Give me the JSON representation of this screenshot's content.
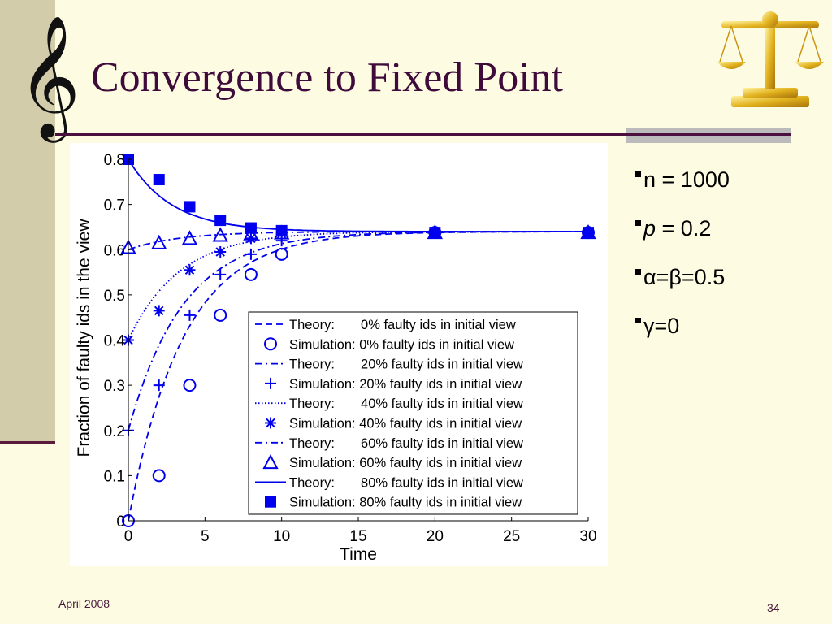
{
  "slide": {
    "title": "Convergence to Fixed Point",
    "clef_glyph": "𝄞",
    "footer_date": "April 2008",
    "page_number": "34",
    "logo_icon": "scales-of-justice-icon",
    "bullets": [
      {
        "label": "n",
        "value": " = 1000",
        "italic": false
      },
      {
        "label": "p",
        "value": " = 0.2",
        "italic": true
      },
      {
        "label": "α=β=0.5",
        "value": "",
        "italic": false
      },
      {
        "label": "γ=0",
        "value": "",
        "italic": false
      }
    ]
  },
  "chart_data": {
    "type": "line",
    "xlabel": "Time",
    "ylabel": "Fraction of faulty ids in the view",
    "xlim": [
      0,
      30
    ],
    "ylim": [
      0,
      0.8
    ],
    "xticks": [
      0,
      5,
      10,
      15,
      20,
      25,
      30
    ],
    "yticks": [
      0,
      0.1,
      0.2,
      0.3,
      0.4,
      0.5,
      0.6,
      0.7,
      0.8
    ],
    "ytick_labels": [
      "0",
      "0.1",
      "0.2",
      "0.3",
      "0.4",
      "0.5",
      "0.6",
      "0.7",
      "0.8"
    ],
    "grid": false,
    "legend_position": "bottom-right",
    "color": "#0000ee",
    "fixed_point": 0.64,
    "series": [
      {
        "name": "Theory:       0% faulty ids in initial view",
        "kind": "theory",
        "dash": "8,5",
        "x0": 0,
        "k": 0.28
      },
      {
        "name": "Simulation: 0% faulty ids in initial view",
        "kind": "simulation",
        "marker": "circle",
        "points": [
          [
            0,
            0.0
          ],
          [
            2,
            0.1
          ],
          [
            4,
            0.3
          ],
          [
            6,
            0.455
          ],
          [
            8,
            0.545
          ],
          [
            10,
            0.59
          ],
          [
            20,
            0.638
          ],
          [
            30,
            0.638
          ]
        ]
      },
      {
        "name": "Theory:       20% faulty ids in initial view",
        "kind": "theory",
        "dash": "9,4,2,4",
        "x0": 0.2,
        "k": 0.28
      },
      {
        "name": "Simulation: 20% faulty ids in initial view",
        "kind": "simulation",
        "marker": "plus",
        "points": [
          [
            0,
            0.2
          ],
          [
            2,
            0.3
          ],
          [
            4,
            0.455
          ],
          [
            6,
            0.545
          ],
          [
            8,
            0.59
          ],
          [
            10,
            0.62
          ],
          [
            20,
            0.638
          ],
          [
            30,
            0.638
          ]
        ]
      },
      {
        "name": "Theory:       40% faulty ids in initial view",
        "kind": "theory",
        "dash": "1.5,2.5",
        "x0": 0.4,
        "k": 0.3
      },
      {
        "name": "Simulation: 40% faulty ids in initial view",
        "kind": "simulation",
        "marker": "asterisk",
        "points": [
          [
            0,
            0.4
          ],
          [
            2,
            0.465
          ],
          [
            4,
            0.555
          ],
          [
            6,
            0.595
          ],
          [
            8,
            0.625
          ],
          [
            10,
            0.635
          ],
          [
            20,
            0.638
          ],
          [
            30,
            0.638
          ]
        ]
      },
      {
        "name": "Theory:       60% faulty ids in initial view",
        "kind": "theory",
        "dash": "9,4,2,4",
        "x0": 0.6,
        "k": 0.3
      },
      {
        "name": "Simulation: 60% faulty ids in initial view",
        "kind": "simulation",
        "marker": "triangle",
        "points": [
          [
            0,
            0.605
          ],
          [
            2,
            0.615
          ],
          [
            4,
            0.625
          ],
          [
            6,
            0.632
          ],
          [
            8,
            0.635
          ],
          [
            10,
            0.637
          ],
          [
            20,
            0.638
          ],
          [
            30,
            0.638
          ]
        ]
      },
      {
        "name": "Theory:       80% faulty ids in initial view",
        "kind": "theory",
        "dash": "",
        "x0": 0.8,
        "k": 0.35
      },
      {
        "name": "Simulation: 80% faulty ids in initial view",
        "kind": "simulation",
        "marker": "square",
        "points": [
          [
            0,
            0.8
          ],
          [
            2,
            0.755
          ],
          [
            4,
            0.695
          ],
          [
            6,
            0.665
          ],
          [
            8,
            0.648
          ],
          [
            10,
            0.642
          ],
          [
            20,
            0.638
          ],
          [
            30,
            0.638
          ]
        ]
      }
    ]
  }
}
